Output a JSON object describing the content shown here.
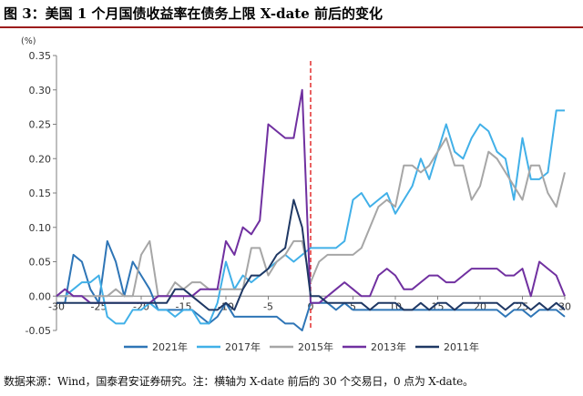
{
  "title": "图 3：美国 1 个月国债收益率在债务上限 X-date 前后的变化",
  "source": "数据来源：Wind，国泰君安证券研究。注：横轴为 X-date 前后的 30 个交易日，0 点为 X-date。",
  "chart_data": {
    "type": "line",
    "unit_label": "(%)",
    "ylim": [
      -0.05,
      0.35
    ],
    "xlim": [
      -30,
      30
    ],
    "yticks": [
      "-0.05",
      "0.00",
      "0.05",
      "0.10",
      "0.15",
      "0.20",
      "0.25",
      "0.30",
      "0.35"
    ],
    "yticks_values": [
      -0.05,
      0,
      0.05,
      0.1,
      0.15,
      0.2,
      0.25,
      0.3,
      0.35
    ],
    "xticks": [
      "-30",
      "-25",
      "-20",
      "-15",
      "-10",
      "-5",
      "0",
      "5",
      "10",
      "15",
      "20",
      "25",
      "30"
    ],
    "xticks_values": [
      -30,
      -25,
      -20,
      -15,
      -10,
      -5,
      0,
      5,
      10,
      15,
      20,
      25,
      30
    ],
    "reference_line_x": 0,
    "grid": false,
    "legend_position": "bottom",
    "series": [
      {
        "name": "2021年",
        "color": "#2e75b6",
        "x": [
          -30,
          -29,
          -28,
          -27,
          -26,
          -25,
          -24,
          -23,
          -22,
          -21,
          -20,
          -19,
          -18,
          -17,
          -16,
          -15,
          -14,
          -13,
          -12,
          -11,
          -10,
          -9,
          -8,
          -7,
          -6,
          -5,
          -4,
          -3,
          -2,
          -1,
          0,
          1,
          2,
          3,
          4,
          5,
          6,
          7,
          8,
          9,
          10,
          11,
          12,
          13,
          14,
          15,
          16,
          17,
          18,
          19,
          20,
          21,
          22,
          23,
          24,
          25,
          26,
          27,
          28,
          29,
          30
        ],
        "values": [
          -0.01,
          -0.01,
          0.06,
          0.05,
          0.01,
          -0.01,
          0.08,
          0.05,
          0.0,
          0.05,
          0.03,
          0.01,
          -0.02,
          -0.02,
          -0.02,
          -0.02,
          -0.02,
          -0.03,
          -0.04,
          -0.03,
          -0.01,
          -0.03,
          -0.03,
          -0.03,
          -0.03,
          -0.03,
          -0.03,
          -0.04,
          -0.04,
          -0.05,
          -0.01,
          -0.01,
          -0.01,
          -0.02,
          -0.01,
          -0.02,
          -0.02,
          -0.02,
          -0.02,
          -0.02,
          -0.02,
          -0.02,
          -0.02,
          -0.02,
          -0.02,
          -0.02,
          -0.02,
          -0.02,
          -0.02,
          -0.02,
          -0.02,
          -0.02,
          -0.02,
          -0.03,
          -0.02,
          -0.02,
          -0.03,
          -0.02,
          -0.02,
          -0.02,
          -0.03
        ]
      },
      {
        "name": "2017年",
        "color": "#41b0e8",
        "x": [
          -30,
          -29,
          -28,
          -27,
          -26,
          -25,
          -24,
          -23,
          -22,
          -21,
          -20,
          -19,
          -18,
          -17,
          -16,
          -15,
          -14,
          -13,
          -12,
          -11,
          -10,
          -9,
          -8,
          -7,
          -6,
          -5,
          -4,
          -3,
          -2,
          -1,
          0,
          1,
          2,
          3,
          4,
          5,
          6,
          7,
          8,
          9,
          10,
          11,
          12,
          13,
          14,
          15,
          16,
          17,
          18,
          19,
          20,
          21,
          22,
          23,
          24,
          25,
          26,
          27,
          28,
          29,
          30
        ],
        "values": [
          0.0,
          0.0,
          0.01,
          0.02,
          0.02,
          0.03,
          -0.03,
          -0.04,
          -0.04,
          -0.02,
          -0.02,
          -0.01,
          -0.02,
          -0.02,
          -0.03,
          -0.02,
          -0.02,
          -0.04,
          -0.04,
          -0.01,
          0.05,
          0.01,
          0.03,
          0.02,
          0.03,
          0.04,
          0.05,
          0.06,
          0.05,
          0.06,
          0.07,
          0.07,
          0.07,
          0.07,
          0.08,
          0.14,
          0.15,
          0.13,
          0.14,
          0.15,
          0.12,
          0.14,
          0.16,
          0.2,
          0.17,
          0.21,
          0.25,
          0.21,
          0.2,
          0.23,
          0.25,
          0.24,
          0.21,
          0.2,
          0.14,
          0.23,
          0.17,
          0.17,
          0.18,
          0.27,
          0.27
        ]
      },
      {
        "name": "2015年",
        "color": "#a6a6a6",
        "x": [
          -30,
          -29,
          -28,
          -27,
          -26,
          -25,
          -24,
          -23,
          -22,
          -21,
          -20,
          -19,
          -18,
          -17,
          -16,
          -15,
          -14,
          -13,
          -12,
          -11,
          -10,
          -9,
          -8,
          -7,
          -6,
          -5,
          -4,
          -3,
          -2,
          -1,
          0,
          1,
          2,
          3,
          4,
          5,
          6,
          7,
          8,
          9,
          10,
          11,
          12,
          13,
          14,
          15,
          16,
          17,
          18,
          19,
          20,
          21,
          22,
          23,
          24,
          25,
          26,
          27,
          28,
          29,
          30
        ],
        "values": [
          0.0,
          0.0,
          0.0,
          0.0,
          0.0,
          0.0,
          0.0,
          0.01,
          0.0,
          0.0,
          0.06,
          0.08,
          0.0,
          0.0,
          0.02,
          0.01,
          0.02,
          0.02,
          0.01,
          0.01,
          0.01,
          0.01,
          0.01,
          0.07,
          0.07,
          0.03,
          0.05,
          0.06,
          0.08,
          0.08,
          0.02,
          0.05,
          0.06,
          0.06,
          0.06,
          0.06,
          0.07,
          0.1,
          0.13,
          0.14,
          0.13,
          0.19,
          0.19,
          0.18,
          0.19,
          0.21,
          0.23,
          0.19,
          0.19,
          0.14,
          0.16,
          0.21,
          0.2,
          0.18,
          0.16,
          0.14,
          0.19,
          0.19,
          0.15,
          0.13,
          0.18
        ]
      },
      {
        "name": "2013年",
        "color": "#7030a0",
        "x": [
          -30,
          -29,
          -28,
          -27,
          -26,
          -25,
          -24,
          -23,
          -22,
          -21,
          -20,
          -19,
          -18,
          -17,
          -16,
          -15,
          -14,
          -13,
          -12,
          -11,
          -10,
          -9,
          -8,
          -7,
          -6,
          -5,
          -4,
          -3,
          -2,
          -1,
          0,
          1,
          2,
          3,
          4,
          5,
          6,
          7,
          8,
          9,
          10,
          11,
          12,
          13,
          14,
          15,
          16,
          17,
          18,
          19,
          20,
          21,
          22,
          23,
          24,
          25,
          26,
          27,
          28,
          29,
          30
        ],
        "values": [
          0.0,
          0.01,
          0.0,
          0.0,
          -0.01,
          -0.01,
          -0.01,
          -0.01,
          -0.01,
          -0.01,
          -0.01,
          -0.01,
          0.0,
          0.0,
          0.0,
          0.0,
          0.0,
          0.01,
          0.01,
          0.01,
          0.08,
          0.06,
          0.1,
          0.09,
          0.11,
          0.25,
          0.24,
          0.23,
          0.23,
          0.3,
          -0.01,
          -0.01,
          0.0,
          0.01,
          0.02,
          0.01,
          0.0,
          0.0,
          0.03,
          0.04,
          0.03,
          0.01,
          0.01,
          0.02,
          0.03,
          0.03,
          0.02,
          0.02,
          0.03,
          0.04,
          0.04,
          0.04,
          0.04,
          0.03,
          0.03,
          0.04,
          0.0,
          0.05,
          0.04,
          0.03,
          0.0
        ]
      },
      {
        "name": "2011年",
        "color": "#1f3864",
        "x": [
          -30,
          -29,
          -28,
          -27,
          -26,
          -25,
          -24,
          -23,
          -22,
          -21,
          -20,
          -19,
          -18,
          -17,
          -16,
          -15,
          -14,
          -13,
          -12,
          -11,
          -10,
          -9,
          -8,
          -7,
          -6,
          -5,
          -4,
          -3,
          -2,
          -1,
          0,
          1,
          2,
          3,
          4,
          5,
          6,
          7,
          8,
          9,
          10,
          11,
          12,
          13,
          14,
          15,
          16,
          17,
          18,
          19,
          20,
          21,
          22,
          23,
          24,
          25,
          26,
          27,
          28,
          29,
          30
        ],
        "values": [
          -0.01,
          -0.01,
          -0.01,
          -0.01,
          -0.01,
          -0.01,
          -0.01,
          -0.01,
          -0.01,
          -0.01,
          -0.01,
          -0.01,
          -0.01,
          -0.01,
          0.01,
          0.01,
          0.0,
          -0.01,
          -0.02,
          -0.02,
          -0.01,
          -0.02,
          0.01,
          0.03,
          0.03,
          0.04,
          0.06,
          0.07,
          0.14,
          0.1,
          0.0,
          0.0,
          -0.01,
          -0.01,
          -0.01,
          -0.01,
          -0.01,
          -0.02,
          -0.01,
          -0.01,
          -0.01,
          -0.02,
          -0.02,
          -0.01,
          -0.02,
          -0.01,
          -0.01,
          -0.02,
          -0.01,
          -0.01,
          -0.01,
          -0.01,
          -0.01,
          -0.02,
          -0.01,
          -0.01,
          -0.02,
          -0.01,
          -0.02,
          -0.01,
          -0.02
        ]
      }
    ]
  }
}
